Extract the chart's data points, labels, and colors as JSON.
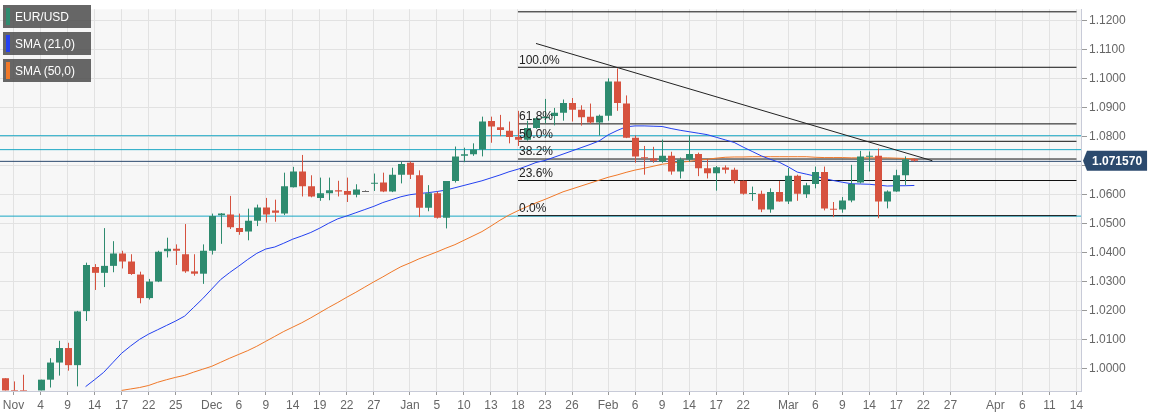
{
  "chart_data": {
    "type": "candlestick",
    "categories": [
      null,
      "Nov",
      null,
      null,
      "4",
      null,
      null,
      "9",
      null,
      null,
      "14",
      null,
      null,
      "17",
      null,
      null,
      "22",
      null,
      null,
      "25",
      null,
      null,
      null,
      "Dec",
      null,
      null,
      "6",
      null,
      null,
      "9",
      null,
      null,
      "14",
      null,
      null,
      "19",
      null,
      null,
      "22",
      null,
      null,
      "27",
      null,
      null,
      null,
      "Jan",
      null,
      null,
      "5",
      null,
      null,
      "10",
      null,
      null,
      "13",
      null,
      null,
      "18",
      null,
      null,
      "23",
      null,
      null,
      "26",
      null,
      null,
      null,
      "Feb",
      null,
      null,
      "6",
      null,
      null,
      "9",
      null,
      null,
      "14",
      null,
      null,
      "17",
      null,
      null,
      "22",
      null,
      null,
      null,
      null,
      "Mar",
      null,
      null,
      "6",
      null,
      null,
      "9",
      null,
      null,
      "14",
      null,
      null,
      "17",
      null,
      null,
      "22",
      null,
      null,
      "27",
      null,
      null,
      null,
      null,
      "Apr",
      null,
      null,
      "6",
      null,
      null,
      "11",
      null,
      null,
      "14"
    ],
    "series": [
      {
        "name": "EUR/USD",
        "color": "#2e8b6f",
        "colors": [
          "#d6523f",
          "#d6523f",
          "#d6523f",
          null,
          "#2e8b6f",
          "#2e8b6f",
          "#2e8b6f",
          "#d6523f",
          "#2e8b6f",
          "#2e8b6f",
          "#d6523f",
          "#2e8b6f",
          "#2e8b6f",
          "#d6523f",
          "#d6523f",
          "#d6523f",
          "#2e8b6f",
          "#2e8b6f",
          "#2e8b6f",
          "#d6523f",
          "#d6523f",
          "#d6523f",
          "#2e8b6f",
          "#2e8b6f",
          "#2e8b6f",
          "#d6523f",
          "#d6523f",
          "#2e8b6f",
          "#2e8b6f",
          "#d6523f",
          "#d6523f",
          "#2e8b6f",
          "#2e8b6f",
          "#d6523f",
          "#d6523f",
          "#2e8b6f",
          "#2e8b6f",
          "#d6523f",
          "#d6523f",
          "#2e8b6f",
          "#666666",
          "#2e8b6f",
          "#d6523f",
          "#2e8b6f",
          "#2e8b6f",
          "#d6523f",
          "#d6523f",
          "#2e8b6f",
          "#d6523f",
          "#2e8b6f",
          "#2e8b6f",
          "#2e8b6f",
          "#2e8b6f",
          "#2e8b6f",
          "#d6523f",
          "#d6523f",
          "#d6523f",
          "#d6523f",
          "#2e8b6f",
          "#2e8b6f",
          "#2e8b6f",
          "#2e8b6f",
          "#2e8b6f",
          "#d6523f",
          "#d6523f",
          "#d6523f",
          "#2e8b6f",
          "#2e8b6f",
          "#d6523f",
          "#d6523f",
          "#d6523f",
          "#d6523f",
          "#d6523f",
          "#2e8b6f",
          "#d6523f",
          "#2e8b6f",
          "#2e8b6f",
          "#d6523f",
          "#d6523f",
          "#2e8b6f",
          "#d6523f",
          "#d6523f",
          "#d6523f",
          "#2e8b6f",
          "#d6523f",
          "#2e8b6f",
          "#d6523f",
          "#2e8b6f",
          "#d6523f",
          "#2e8b6f",
          "#2e8b6f",
          "#d6523f",
          "#d6523f",
          "#2e8b6f",
          "#2e8b6f",
          "#2e8b6f",
          "#2e8b6f",
          "#d6523f",
          "#2e8b6f",
          "#2e8b6f",
          "#2e8b6f",
          "#d6523f",
          null,
          null,
          null,
          null,
          null,
          null,
          null,
          null,
          null,
          null,
          null,
          null,
          null,
          null,
          null,
          null,
          null,
          null
        ],
        "ohlc": [
          [
            0.9967,
            0.9967,
            0.9925,
            0.9925
          ],
          [
            0.9925,
            0.9956,
            0.9925,
            0.9925
          ],
          [
            0.9925,
            0.9979,
            0.9925,
            0.9925
          ],
          null,
          [
            0.9925,
            0.9962,
            0.9925,
            0.9962
          ],
          [
            0.9962,
            1.0036,
            0.9935,
            1.0021
          ],
          [
            1.0021,
            1.0096,
            0.9976,
            1.0071
          ],
          [
            1.0071,
            1.0089,
            0.9993,
            1.0012
          ],
          [
            1.0012,
            1.0199,
            0.9939,
            1.0197
          ],
          [
            1.0198,
            1.0365,
            1.0164,
            1.0357
          ],
          [
            1.035,
            1.036,
            1.0271,
            1.033
          ],
          [
            1.033,
            1.0484,
            1.0281,
            1.0354
          ],
          [
            1.0354,
            1.0439,
            1.0332,
            1.0397
          ],
          [
            1.0397,
            1.0406,
            1.0345,
            1.0369
          ],
          [
            1.0369,
            1.0394,
            1.0323,
            1.0326
          ],
          [
            1.0324,
            1.0334,
            1.0225,
            1.0243
          ],
          [
            1.0243,
            1.0309,
            1.0238,
            1.03
          ],
          [
            1.03,
            1.0406,
            1.0298,
            1.0403
          ],
          [
            1.0404,
            1.0451,
            1.0383,
            1.0413
          ],
          [
            1.0413,
            1.0428,
            1.0357,
            1.0406
          ],
          [
            1.0394,
            1.0498,
            1.033,
            1.0335
          ],
          [
            1.0335,
            1.0394,
            1.032,
            1.0327
          ],
          [
            1.0327,
            1.0428,
            1.0292,
            1.0406
          ],
          [
            1.0406,
            1.0534,
            1.0393,
            1.0526
          ],
          [
            1.0528,
            1.0536,
            1.043,
            1.0534
          ],
          [
            1.0531,
            1.0595,
            1.0481,
            1.0487
          ],
          [
            1.0484,
            1.0534,
            1.0461,
            1.0471
          ],
          [
            1.0472,
            1.0551,
            1.0442,
            1.0509
          ],
          [
            1.0509,
            1.0565,
            1.0491,
            1.0555
          ],
          [
            1.0555,
            1.0588,
            1.0503,
            1.0531
          ],
          [
            1.0545,
            1.0582,
            1.0506,
            1.0537
          ],
          [
            1.0534,
            1.0675,
            1.0529,
            1.0628
          ],
          [
            1.0625,
            1.0695,
            1.0624,
            1.0679
          ],
          [
            1.0679,
            1.0736,
            1.0593,
            1.0628
          ],
          [
            1.0628,
            1.0666,
            1.059,
            1.0593
          ],
          [
            1.0588,
            1.0658,
            1.0578,
            1.0604
          ],
          [
            1.0604,
            1.0658,
            1.058,
            1.0614
          ],
          [
            1.0614,
            1.0647,
            1.0593,
            1.061
          ],
          [
            1.0612,
            1.0658,
            1.0574,
            1.0599
          ],
          [
            1.0599,
            1.0635,
            1.059,
            1.0617
          ],
          [
            1.0612,
            1.0614,
            1.061,
            1.0612
          ],
          [
            1.0637,
            1.0672,
            1.0612,
            1.064
          ],
          [
            1.0641,
            1.0675,
            1.0608,
            1.061
          ],
          [
            1.061,
            1.0692,
            1.0608,
            1.0668
          ],
          [
            1.0668,
            1.0713,
            1.0638,
            1.0705
          ],
          [
            1.0709,
            1.0713,
            1.0653,
            1.0668
          ],
          [
            1.0666,
            1.0683,
            1.0522,
            1.0554
          ],
          [
            1.0554,
            1.0632,
            1.0542,
            1.0604
          ],
          [
            1.0604,
            1.061,
            1.0517,
            1.052
          ],
          [
            1.052,
            1.0646,
            1.0483,
            1.0646
          ],
          [
            1.0646,
            1.0765,
            1.0641,
            1.0731
          ],
          [
            1.0733,
            1.0761,
            1.0711,
            1.0738
          ],
          [
            1.0738,
            1.0776,
            1.0733,
            1.0755
          ],
          [
            1.0755,
            1.0868,
            1.0731,
            1.0851
          ],
          [
            1.0853,
            1.0868,
            1.0778,
            1.0834
          ],
          [
            1.0831,
            1.0874,
            1.0801,
            1.0822
          ],
          [
            1.0819,
            1.0851,
            1.0776,
            1.0798
          ],
          [
            1.0798,
            1.0888,
            1.0767,
            1.0788
          ],
          [
            1.0788,
            1.0854,
            1.0785,
            1.0829
          ],
          [
            1.0829,
            1.0866,
            1.0826,
            1.0862
          ],
          [
            1.0862,
            1.0929,
            1.0845,
            1.0868
          ],
          [
            1.087,
            1.0898,
            1.0838,
            1.0881
          ],
          [
            1.0881,
            1.0927,
            1.0854,
            1.0915
          ],
          [
            1.0915,
            1.0932,
            1.0851,
            1.0892
          ],
          [
            1.0892,
            1.0907,
            1.0837,
            1.0866
          ],
          [
            1.0868,
            1.0913,
            1.0843,
            1.0848
          ],
          [
            1.0848,
            1.0875,
            1.0803,
            1.0871
          ],
          [
            1.0871,
            1.1,
            1.0854,
            1.0989
          ],
          [
            1.0989,
            1.1034,
            1.0888,
            1.0915
          ],
          [
            1.0913,
            1.0941,
            1.0794,
            1.0795
          ],
          [
            1.0795,
            1.0803,
            1.0709,
            1.0731
          ],
          [
            1.0728,
            1.0767,
            1.0668,
            1.0726
          ],
          [
            1.0724,
            1.0764,
            1.0709,
            1.0716
          ],
          [
            1.0713,
            1.0789,
            1.0709,
            1.0733
          ],
          [
            1.0733,
            1.0747,
            1.0668,
            1.0679
          ],
          [
            1.0679,
            1.0727,
            1.0655,
            1.072
          ],
          [
            1.072,
            1.0803,
            1.0713,
            1.0739
          ],
          [
            1.0739,
            1.0744,
            1.0663,
            1.069
          ],
          [
            1.069,
            1.0722,
            1.0655,
            1.0673
          ],
          [
            1.0673,
            1.0698,
            1.0613,
            1.0694
          ],
          [
            1.0693,
            1.07,
            1.0672,
            1.0685
          ],
          [
            1.0685,
            1.0692,
            1.0638,
            1.0647
          ],
          [
            1.0647,
            1.0648,
            1.0599,
            1.0602
          ],
          [
            1.0602,
            1.0627,
            1.0578,
            1.0605
          ],
          [
            1.0602,
            1.0613,
            1.0539,
            1.0548
          ],
          [
            1.0548,
            1.0621,
            1.0537,
            1.0608
          ],
          [
            1.0608,
            1.0646,
            1.0575,
            1.0576
          ],
          [
            1.0576,
            1.0691,
            1.0567,
            1.0664
          ],
          [
            1.0664,
            1.0668,
            1.0578,
            1.0602
          ],
          [
            1.0601,
            1.064,
            1.0588,
            1.0632
          ],
          [
            1.0636,
            1.0696,
            1.0621,
            1.0677
          ],
          [
            1.0677,
            1.0696,
            1.0545,
            1.0552
          ],
          [
            1.0551,
            1.0574,
            1.0522,
            1.0549
          ],
          [
            1.0548,
            1.0591,
            1.0537,
            1.0579
          ],
          [
            1.0579,
            1.0702,
            1.0573,
            1.0636
          ],
          [
            1.0641,
            1.075,
            1.0638,
            1.0731
          ],
          [
            1.0731,
            1.0748,
            1.0679,
            1.0733
          ],
          [
            1.0733,
            1.0758,
            1.0518,
            1.0576
          ],
          [
            1.0576,
            1.0614,
            1.0552,
            1.061
          ],
          [
            1.061,
            1.0685,
            1.0609,
            1.0666
          ],
          [
            1.0666,
            1.0731,
            1.0632,
            1.072
          ],
          [
            1.0722,
            1.0724,
            1.0713,
            1.0716
          ],
          null,
          null,
          null,
          null,
          null,
          null,
          null,
          null,
          null,
          null,
          null,
          null,
          null,
          null,
          null,
          null,
          null,
          null
        ]
      },
      {
        "name": "SMA (21,0)",
        "type": "line",
        "color": "#2340f0",
        "values": [
          null,
          null,
          null,
          null,
          null,
          null,
          null,
          null,
          null,
          0.9938,
          0.9962,
          0.9987,
          1.002,
          1.0053,
          1.0078,
          1.0101,
          1.0119,
          1.0134,
          1.0149,
          1.0164,
          1.0181,
          1.0211,
          1.0241,
          1.0274,
          1.0307,
          1.0331,
          1.0353,
          1.0376,
          1.0397,
          1.0412,
          1.0419,
          1.0432,
          1.0446,
          1.0457,
          1.0469,
          1.0484,
          1.0501,
          1.0516,
          1.0526,
          1.0537,
          1.0548,
          1.0559,
          1.0572,
          1.0582,
          1.0592,
          1.0599,
          1.0603,
          1.0606,
          1.061,
          1.0615,
          1.0623,
          1.0631,
          1.0639,
          1.0647,
          1.0657,
          1.0667,
          1.0678,
          1.0687,
          1.0698,
          1.071,
          1.0717,
          1.0728,
          1.0739,
          1.075,
          1.0761,
          1.0772,
          1.0784,
          1.0805,
          1.082,
          1.0833,
          1.0836,
          1.0836,
          1.0835,
          1.0834,
          1.0827,
          1.0821,
          1.0816,
          1.0811,
          1.0806,
          1.0797,
          1.0788,
          1.0779,
          1.0763,
          1.0748,
          1.0733,
          1.0721,
          1.0711,
          1.0695,
          1.0677,
          1.067,
          1.0663,
          1.0655,
          1.0648,
          1.0642,
          1.0637,
          1.0636,
          1.0635,
          1.0632,
          1.0629,
          1.063,
          1.063,
          1.0631,
          null,
          null,
          null,
          null,
          null,
          null,
          null,
          null,
          null,
          null,
          null,
          null,
          null,
          null,
          null,
          null,
          null,
          null
        ]
      },
      {
        "name": "SMA (50,0)",
        "type": "line",
        "color": "#f07828",
        "values": [
          null,
          null,
          null,
          null,
          null,
          null,
          null,
          null,
          null,
          null,
          null,
          null,
          null,
          0.9925,
          0.993,
          0.9935,
          0.9942,
          0.9953,
          0.9962,
          0.997,
          0.9977,
          0.9988,
          0.9998,
          1.0008,
          1.0022,
          1.0036,
          1.0049,
          1.0062,
          1.0077,
          1.0094,
          1.0111,
          1.0128,
          1.0143,
          1.0158,
          1.0175,
          1.0193,
          1.0211,
          1.0228,
          1.0246,
          1.0263,
          1.0281,
          1.0299,
          1.0316,
          1.0334,
          1.0351,
          1.0364,
          1.0378,
          1.039,
          1.0402,
          1.0415,
          1.0427,
          1.0442,
          1.0457,
          1.0472,
          1.0491,
          1.0511,
          1.0529,
          1.0544,
          1.0558,
          1.0571,
          1.0583,
          1.0596,
          1.0609,
          1.0619,
          1.0629,
          1.0639,
          1.0649,
          1.0659,
          1.0667,
          1.0676,
          1.0684,
          1.069,
          1.0697,
          1.0704,
          1.0708,
          1.0711,
          1.0714,
          1.0718,
          1.0721,
          1.0725,
          1.0728,
          1.0729,
          1.0729,
          1.073,
          1.073,
          1.073,
          1.073,
          1.073,
          1.073,
          1.073,
          1.0728,
          1.0727,
          1.0727,
          1.0727,
          1.0726,
          1.0726,
          1.0726,
          1.0726,
          1.0726,
          1.0725,
          1.0724,
          1.0722,
          null,
          null,
          null,
          null,
          null,
          null,
          null,
          null,
          null,
          null,
          null,
          null,
          null,
          null,
          null,
          null,
          null,
          null
        ]
      },
      {
        "type": "line",
        "color": "#222222",
        "values": [
          null,
          null,
          null,
          null,
          null,
          null,
          null,
          null,
          null,
          null,
          null,
          null,
          null,
          null,
          null,
          null,
          null,
          null,
          null,
          null,
          null,
          null,
          null,
          null,
          null,
          null,
          null,
          null,
          null,
          null,
          null,
          null,
          null,
          null,
          null,
          null,
          null,
          null,
          null,
          null,
          null,
          null,
          null,
          null,
          null,
          null,
          null,
          null,
          null,
          null,
          null,
          null,
          null,
          null,
          null,
          null,
          null,
          null,
          null,
          1.112,
          null,
          null,
          null,
          null,
          null,
          null,
          null,
          null,
          null,
          null,
          null,
          null,
          null,
          null,
          null,
          null,
          null,
          null,
          null,
          null,
          null,
          null,
          null,
          null,
          null,
          null,
          null,
          null,
          null,
          null,
          null,
          null,
          null,
          null,
          null,
          null,
          null,
          null,
          null,
          null,
          null,
          null,
          null,
          1.0716,
          null,
          null,
          null,
          null,
          null,
          null,
          null,
          null,
          null,
          null,
          null,
          null,
          null,
          null,
          null,
          null
        ]
      },
      {
        "type": "line",
        "color": "#111111",
        "values": [
          null,
          null,
          null,
          null,
          null,
          null,
          null,
          null,
          null,
          null,
          null,
          null,
          null,
          null,
          null,
          null,
          null,
          null,
          null,
          null,
          null,
          null,
          null,
          null,
          null,
          null,
          null,
          null,
          null,
          null,
          null,
          null,
          null,
          null,
          null,
          null,
          null,
          null,
          null,
          null,
          null,
          null,
          null,
          null,
          null,
          null,
          null,
          null,
          null,
          null,
          null,
          null,
          null,
          null,
          null,
          null,
          null,
          1.1229,
          null,
          null,
          null,
          null,
          null,
          null,
          null,
          null,
          null,
          null,
          null,
          null,
          null,
          null,
          null,
          null,
          null,
          null,
          null,
          null,
          null,
          null,
          null,
          null,
          null,
          null,
          null,
          null,
          null,
          null,
          null,
          null,
          null,
          null,
          null,
          null,
          null,
          null,
          null,
          null,
          null,
          null,
          null,
          null,
          null,
          null,
          null,
          null,
          null,
          null,
          null,
          null,
          null,
          null,
          null,
          null,
          null,
          null,
          null,
          null,
          null,
          1.1229
        ]
      },
      {
        "type": "line",
        "color": "#111111",
        "values": [
          null,
          null,
          null,
          null,
          null,
          null,
          null,
          null,
          null,
          null,
          null,
          null,
          null,
          null,
          null,
          null,
          null,
          null,
          null,
          null,
          null,
          null,
          null,
          null,
          null,
          null,
          null,
          null,
          null,
          null,
          null,
          null,
          null,
          null,
          null,
          null,
          null,
          null,
          null,
          null,
          null,
          null,
          null,
          null,
          null,
          null,
          null,
          null,
          null,
          null,
          null,
          null,
          null,
          null,
          null,
          null,
          null,
          1.1038,
          null,
          null,
          null,
          null,
          null,
          null,
          null,
          null,
          null,
          null,
          null,
          null,
          null,
          null,
          null,
          null,
          null,
          null,
          null,
          null,
          null,
          null,
          null,
          null,
          null,
          null,
          null,
          null,
          null,
          null,
          null,
          null,
          null,
          null,
          null,
          null,
          null,
          null,
          null,
          null,
          null,
          null,
          null,
          null,
          null,
          null,
          null,
          null,
          null,
          null,
          null,
          null,
          null,
          null,
          null,
          null,
          null,
          null,
          null,
          null,
          null,
          1.1038
        ]
      },
      {
        "type": "line",
        "color": "#111111",
        "values": [
          null,
          null,
          null,
          null,
          null,
          null,
          null,
          null,
          null,
          null,
          null,
          null,
          null,
          null,
          null,
          null,
          null,
          null,
          null,
          null,
          null,
          null,
          null,
          null,
          null,
          null,
          null,
          null,
          null,
          null,
          null,
          null,
          null,
          null,
          null,
          null,
          null,
          null,
          null,
          null,
          null,
          null,
          null,
          null,
          null,
          null,
          null,
          null,
          null,
          null,
          null,
          null,
          null,
          null,
          null,
          null,
          null,
          1.0843,
          null,
          null,
          null,
          null,
          null,
          null,
          null,
          null,
          null,
          null,
          null,
          null,
          null,
          null,
          null,
          null,
          null,
          null,
          null,
          null,
          null,
          null,
          null,
          null,
          null,
          null,
          null,
          null,
          null,
          null,
          null,
          null,
          null,
          null,
          null,
          null,
          null,
          null,
          null,
          null,
          null,
          null,
          null,
          null,
          null,
          null,
          null,
          null,
          null,
          null,
          null,
          null,
          null,
          null,
          null,
          null,
          null,
          null,
          null,
          null,
          null,
          1.0843
        ]
      },
      {
        "type": "line",
        "color": "#111111",
        "values": [
          null,
          null,
          null,
          null,
          null,
          null,
          null,
          null,
          null,
          null,
          null,
          null,
          null,
          null,
          null,
          null,
          null,
          null,
          null,
          null,
          null,
          null,
          null,
          null,
          null,
          null,
          null,
          null,
          null,
          null,
          null,
          null,
          null,
          null,
          null,
          null,
          null,
          null,
          null,
          null,
          null,
          null,
          null,
          null,
          null,
          null,
          null,
          null,
          null,
          null,
          null,
          null,
          null,
          null,
          null,
          null,
          null,
          1.0783,
          null,
          null,
          null,
          null,
          null,
          null,
          null,
          null,
          null,
          null,
          null,
          null,
          null,
          null,
          null,
          null,
          null,
          null,
          null,
          null,
          null,
          null,
          null,
          null,
          null,
          null,
          null,
          null,
          null,
          null,
          null,
          null,
          null,
          null,
          null,
          null,
          null,
          null,
          null,
          null,
          null,
          null,
          null,
          null,
          null,
          null,
          null,
          null,
          null,
          null,
          null,
          null,
          null,
          null,
          null,
          null,
          null,
          null,
          null,
          null,
          null,
          1.0783
        ]
      },
      {
        "type": "line",
        "color": "#111111",
        "values": [
          null,
          null,
          null,
          null,
          null,
          null,
          null,
          null,
          null,
          null,
          null,
          null,
          null,
          null,
          null,
          null,
          null,
          null,
          null,
          null,
          null,
          null,
          null,
          null,
          null,
          null,
          null,
          null,
          null,
          null,
          null,
          null,
          null,
          null,
          null,
          null,
          null,
          null,
          null,
          null,
          null,
          null,
          null,
          null,
          null,
          null,
          null,
          null,
          null,
          null,
          null,
          null,
          null,
          null,
          null,
          null,
          null,
          1.0722,
          null,
          null,
          null,
          null,
          null,
          null,
          null,
          null,
          null,
          null,
          null,
          null,
          null,
          null,
          null,
          null,
          null,
          null,
          null,
          null,
          null,
          null,
          null,
          null,
          null,
          null,
          null,
          null,
          null,
          null,
          null,
          null,
          null,
          null,
          null,
          null,
          null,
          null,
          null,
          null,
          null,
          null,
          null,
          null,
          null,
          null,
          null,
          null,
          null,
          null,
          null,
          null,
          null,
          null,
          null,
          null,
          null,
          null,
          null,
          null,
          null,
          1.0722
        ]
      },
      {
        "type": "line",
        "color": "#111111",
        "values": [
          null,
          null,
          null,
          null,
          null,
          null,
          null,
          null,
          null,
          null,
          null,
          null,
          null,
          null,
          null,
          null,
          null,
          null,
          null,
          null,
          null,
          null,
          null,
          null,
          null,
          null,
          null,
          null,
          null,
          null,
          null,
          null,
          null,
          null,
          null,
          null,
          null,
          null,
          null,
          null,
          null,
          null,
          null,
          null,
          null,
          null,
          null,
          null,
          null,
          null,
          null,
          null,
          null,
          null,
          null,
          null,
          null,
          1.0648,
          null,
          null,
          null,
          null,
          null,
          null,
          null,
          null,
          null,
          null,
          null,
          null,
          null,
          null,
          null,
          null,
          null,
          null,
          null,
          null,
          null,
          null,
          null,
          null,
          null,
          null,
          null,
          null,
          null,
          null,
          null,
          null,
          null,
          null,
          null,
          null,
          null,
          null,
          null,
          null,
          null,
          null,
          null,
          null,
          null,
          null,
          null,
          null,
          null,
          null,
          null,
          null,
          null,
          null,
          null,
          null,
          null,
          null,
          null,
          null,
          null,
          1.0648
        ]
      },
      {
        "type": "line",
        "color": "#111111",
        "values": [
          null,
          null,
          null,
          null,
          null,
          null,
          null,
          null,
          null,
          null,
          null,
          null,
          null,
          null,
          null,
          null,
          null,
          null,
          null,
          null,
          null,
          null,
          null,
          null,
          null,
          null,
          null,
          null,
          null,
          null,
          null,
          null,
          null,
          null,
          null,
          null,
          null,
          null,
          null,
          null,
          null,
          null,
          null,
          null,
          null,
          null,
          null,
          null,
          null,
          null,
          null,
          null,
          null,
          null,
          null,
          null,
          null,
          1.0527,
          null,
          null,
          null,
          null,
          null,
          null,
          null,
          null,
          null,
          null,
          null,
          null,
          null,
          null,
          null,
          null,
          null,
          null,
          null,
          null,
          null,
          null,
          null,
          null,
          null,
          null,
          null,
          null,
          null,
          null,
          null,
          null,
          null,
          null,
          null,
          null,
          null,
          null,
          null,
          null,
          null,
          null,
          null,
          null,
          null,
          null,
          null,
          null,
          null,
          null,
          null,
          null,
          null,
          null,
          null,
          null,
          null,
          null,
          null,
          null,
          null,
          1.0527
        ]
      }
    ],
    "ylim": [
      0.9923,
      1.1238
    ],
    "yticks": [
      {
        "value": 1,
        "label": "1.0000"
      },
      {
        "value": 1.01,
        "label": "1.0100"
      },
      {
        "value": 1.02,
        "label": "1.0200"
      },
      {
        "value": 1.03,
        "label": "1.0300"
      },
      {
        "value": 1.04,
        "label": "1.0400"
      },
      {
        "value": 1.05,
        "label": "1.0500"
      },
      {
        "value": 1.06,
        "label": "1.0600"
      },
      {
        "value": 1.07,
        "label": null
      },
      {
        "value": 1.08,
        "label": "1.0800"
      },
      {
        "value": 1.09,
        "label": "1.0900"
      },
      {
        "value": 1.1,
        "label": "1.1000"
      },
      {
        "value": 1.11,
        "label": "1.1100"
      },
      {
        "value": 1.12,
        "label": "1.1200"
      }
    ],
    "grid": true,
    "legend": "top left",
    "marker": "none",
    "ref_lines": [
      {
        "axis": "y",
        "value": 1.0804,
        "color": "#1aa7c4"
      },
      {
        "axis": "y",
        "value": 1.0756,
        "color": "#1aa7c4"
      },
      {
        "axis": "y",
        "value": 1.0527,
        "color": "#1aa7c4"
      },
      {
        "axis": "y",
        "value": 1.07157,
        "label": "1.071570",
        "color": "#2c4a6e"
      }
    ],
    "annotations": [
      {
        "text": "100.0%",
        "x": "18",
        "y": 1.1038
      },
      {
        "text": "61.8%",
        "x": "18",
        "y": 1.0843
      },
      {
        "text": "50.0%",
        "x": "18",
        "y": 1.0783
      },
      {
        "text": "38.2%",
        "x": "18",
        "y": 1.0722
      },
      {
        "text": "23.6%",
        "x": "18",
        "y": 1.0648
      },
      {
        "text": "0.0%",
        "x": "18",
        "y": 1.0527
      }
    ]
  }
}
